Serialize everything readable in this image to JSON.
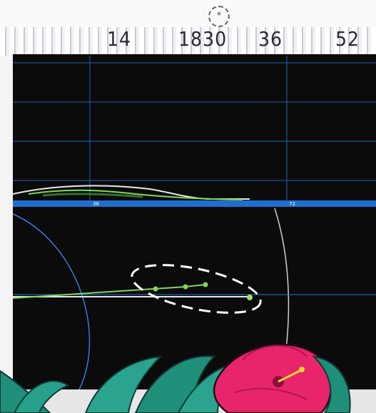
{
  "top_icon": "*",
  "readouts": [
    {
      "text": "14"
    },
    {
      "text": "1830"
    },
    {
      "text": "36"
    },
    {
      "text": "52"
    }
  ],
  "axis_marks": [
    {
      "text": "36"
    },
    {
      "text": "72"
    }
  ],
  "colors": {
    "screen": "#0b0b0c",
    "grid": "#2b6fd6",
    "band": "#1f6fd0",
    "trace_green": "#7ed957",
    "trace_white": "#e8e8e8",
    "flower": "#e8256b",
    "leaf": "#1f8f7a"
  }
}
